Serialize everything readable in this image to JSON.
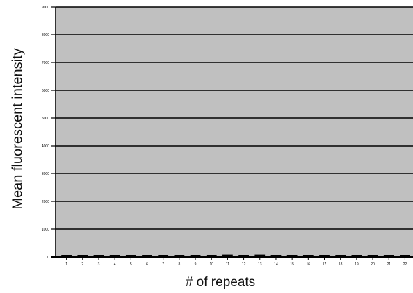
{
  "chart_data": {
    "type": "bar",
    "title": "",
    "xlabel": "# of repeats",
    "ylabel": "Mean fluorescent intensity",
    "categories": [
      "1",
      "2",
      "3",
      "4",
      "5",
      "6",
      "7",
      "8",
      "9",
      "10",
      "11",
      "12",
      "13",
      "14",
      "15",
      "16",
      "17",
      "18",
      "19",
      "20",
      "21",
      "22"
    ],
    "series": [
      {
        "values": [
          30,
          30,
          30,
          30,
          30,
          30,
          30,
          30,
          30,
          40,
          60,
          40,
          60,
          30,
          30,
          30,
          30,
          30,
          50,
          50,
          50,
          50
        ]
      }
    ],
    "ylim": [
      0,
      9000
    ],
    "y_ticks": [
      "0",
      "1000",
      "2000",
      "3000",
      "4000",
      "5000",
      "6000",
      "7000",
      "8000",
      "9000"
    ],
    "grid": true,
    "colors": {
      "plot_bg": "#c0c0c0",
      "grid": "#000000",
      "bar_fill": "#ffffff",
      "bar_stroke": "#000000"
    }
  }
}
